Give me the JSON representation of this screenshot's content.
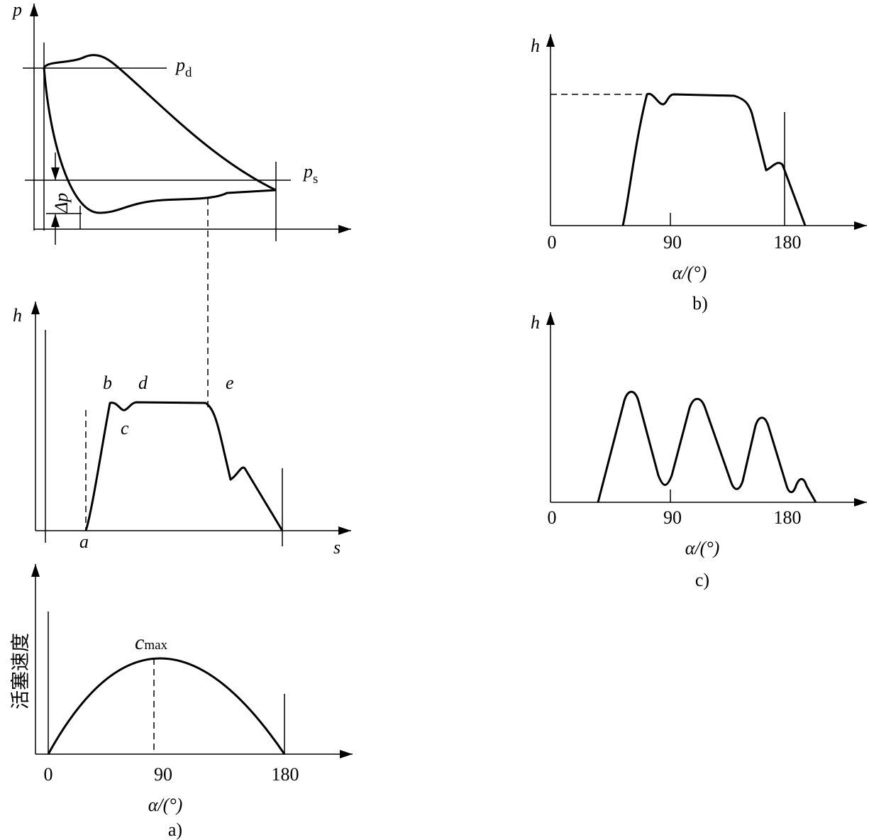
{
  "panel_a": {
    "pv": {
      "y_axis": "p",
      "pd": "p",
      "pd_sub": "d",
      "ps": "p",
      "ps_sub": "s",
      "delta_p": "Δp"
    },
    "hs": {
      "y_axis": "h",
      "x_axis": "s",
      "point_a": "a",
      "point_b": "b",
      "point_c": "c",
      "point_d": "d",
      "point_e": "e"
    },
    "velocity": {
      "y_axis": "活塞速度",
      "peak": "c",
      "peak_sub": "max",
      "ticks": [
        "0",
        "90",
        "180"
      ],
      "x_axis": "α/(°)"
    },
    "caption": "a)"
  },
  "panel_b": {
    "y_axis": "h",
    "ticks": [
      "0",
      "90",
      "180"
    ],
    "x_axis": "α/(°)",
    "caption": "b)"
  },
  "panel_c": {
    "y_axis": "h",
    "ticks": [
      "0",
      "90",
      "180"
    ],
    "x_axis": "α/(°)",
    "caption": "c)"
  }
}
